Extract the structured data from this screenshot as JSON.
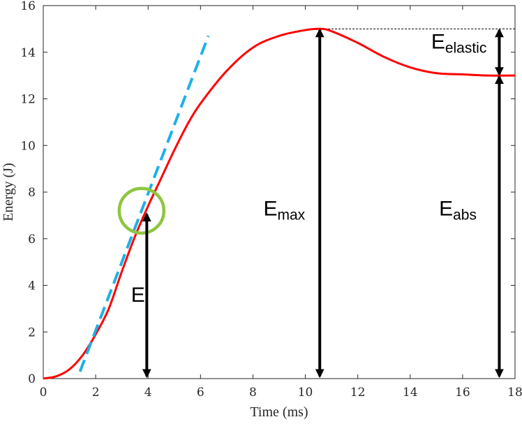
{
  "chart_data": {
    "type": "line",
    "xlabel": "Time (ms)",
    "ylabel": "Energy (J)",
    "xlim": [
      0,
      18
    ],
    "ylim": [
      0,
      16
    ],
    "xticks": [
      0,
      2,
      4,
      6,
      8,
      10,
      12,
      14,
      16,
      18
    ],
    "yticks": [
      0,
      2,
      4,
      6,
      8,
      10,
      12,
      14,
      16
    ],
    "grid": false,
    "series": [
      {
        "color": "#ff0000",
        "style": "solid",
        "x": [
          0,
          0.5,
          1,
          1.5,
          2,
          2.5,
          3,
          3.5,
          4,
          4.5,
          5,
          5.5,
          6,
          7,
          8,
          9,
          10,
          10.6,
          11,
          12,
          13,
          14,
          15,
          16,
          17,
          18
        ],
        "y": [
          0,
          0.1,
          0.4,
          1.0,
          1.9,
          3.0,
          4.6,
          6.1,
          7.4,
          8.6,
          9.8,
          10.9,
          11.8,
          13.2,
          14.2,
          14.7,
          14.95,
          15.0,
          14.9,
          14.4,
          13.8,
          13.35,
          13.1,
          13.05,
          13.0,
          13.0
        ]
      },
      {
        "color": "#1fb0e8",
        "style": "dashed",
        "x": [
          1.4,
          6.3
        ],
        "y": [
          0.3,
          14.7
        ]
      }
    ],
    "reference_line": {
      "y": 15.0,
      "x": [
        10.6,
        18
      ],
      "style": "dotted",
      "color": "#000000"
    },
    "highlight_circle": {
      "x": 3.75,
      "y": 7.2,
      "color": "#8dc63f"
    },
    "annotations": [
      {
        "id": "el",
        "base": "E",
        "sub": "I",
        "arrow": {
          "x": 3.95,
          "y1": 0.1,
          "y2": 7.05
        },
        "label_pos": {
          "x": 3.35,
          "y": 3.3
        }
      },
      {
        "id": "emax",
        "base": "E",
        "sub": "max",
        "arrow": {
          "x": 10.55,
          "y1": 0.1,
          "y2": 14.95
        },
        "label_pos": {
          "x": 8.4,
          "y": 7.0
        }
      },
      {
        "id": "eabs",
        "base": "E",
        "sub": "abs",
        "arrow": {
          "x": 17.4,
          "y1": 0.1,
          "y2": 12.95
        },
        "label_pos": {
          "x": 15.1,
          "y": 7.0
        }
      },
      {
        "id": "eelastic",
        "base": "E",
        "sub": "elastic",
        "arrow": {
          "x": 17.4,
          "y1": 13.05,
          "y2": 14.95
        },
        "label_pos": {
          "x": 14.8,
          "y": 14.15
        }
      }
    ]
  }
}
